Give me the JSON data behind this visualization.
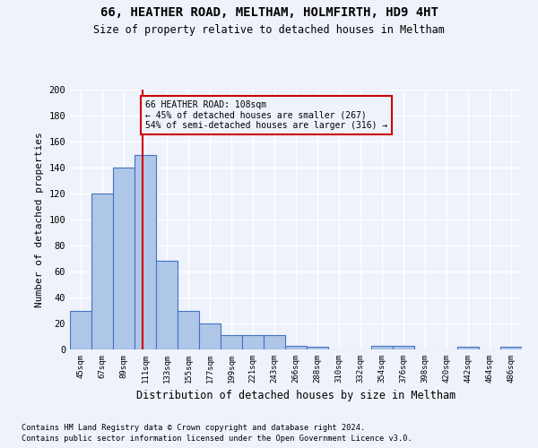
{
  "title1": "66, HEATHER ROAD, MELTHAM, HOLMFIRTH, HD9 4HT",
  "title2": "Size of property relative to detached houses in Meltham",
  "xlabel": "Distribution of detached houses by size in Meltham",
  "ylabel": "Number of detached properties",
  "bar_labels": [
    "45sqm",
    "67sqm",
    "89sqm",
    "111sqm",
    "133sqm",
    "155sqm",
    "177sqm",
    "199sqm",
    "221sqm",
    "243sqm",
    "266sqm",
    "288sqm",
    "310sqm",
    "332sqm",
    "354sqm",
    "376sqm",
    "398sqm",
    "420sqm",
    "442sqm",
    "464sqm",
    "486sqm"
  ],
  "bar_values": [
    30,
    120,
    140,
    150,
    68,
    30,
    20,
    11,
    11,
    11,
    3,
    2,
    0,
    0,
    3,
    3,
    0,
    0,
    2,
    0,
    2
  ],
  "bar_color": "#aec6e8",
  "bar_edge_color": "#4472c4",
  "vline_color": "#cc0000",
  "annotation_text": "66 HEATHER ROAD: 108sqm\n← 45% of detached houses are smaller (267)\n54% of semi-detached houses are larger (316) →",
  "annotation_box_color": "#cc0000",
  "ylim": [
    0,
    200
  ],
  "yticks": [
    0,
    20,
    40,
    60,
    80,
    100,
    120,
    140,
    160,
    180,
    200
  ],
  "footer1": "Contains HM Land Registry data © Crown copyright and database right 2024.",
  "footer2": "Contains public sector information licensed under the Open Government Licence v3.0.",
  "background_color": "#eef2fb",
  "grid_color": "#ffffff"
}
